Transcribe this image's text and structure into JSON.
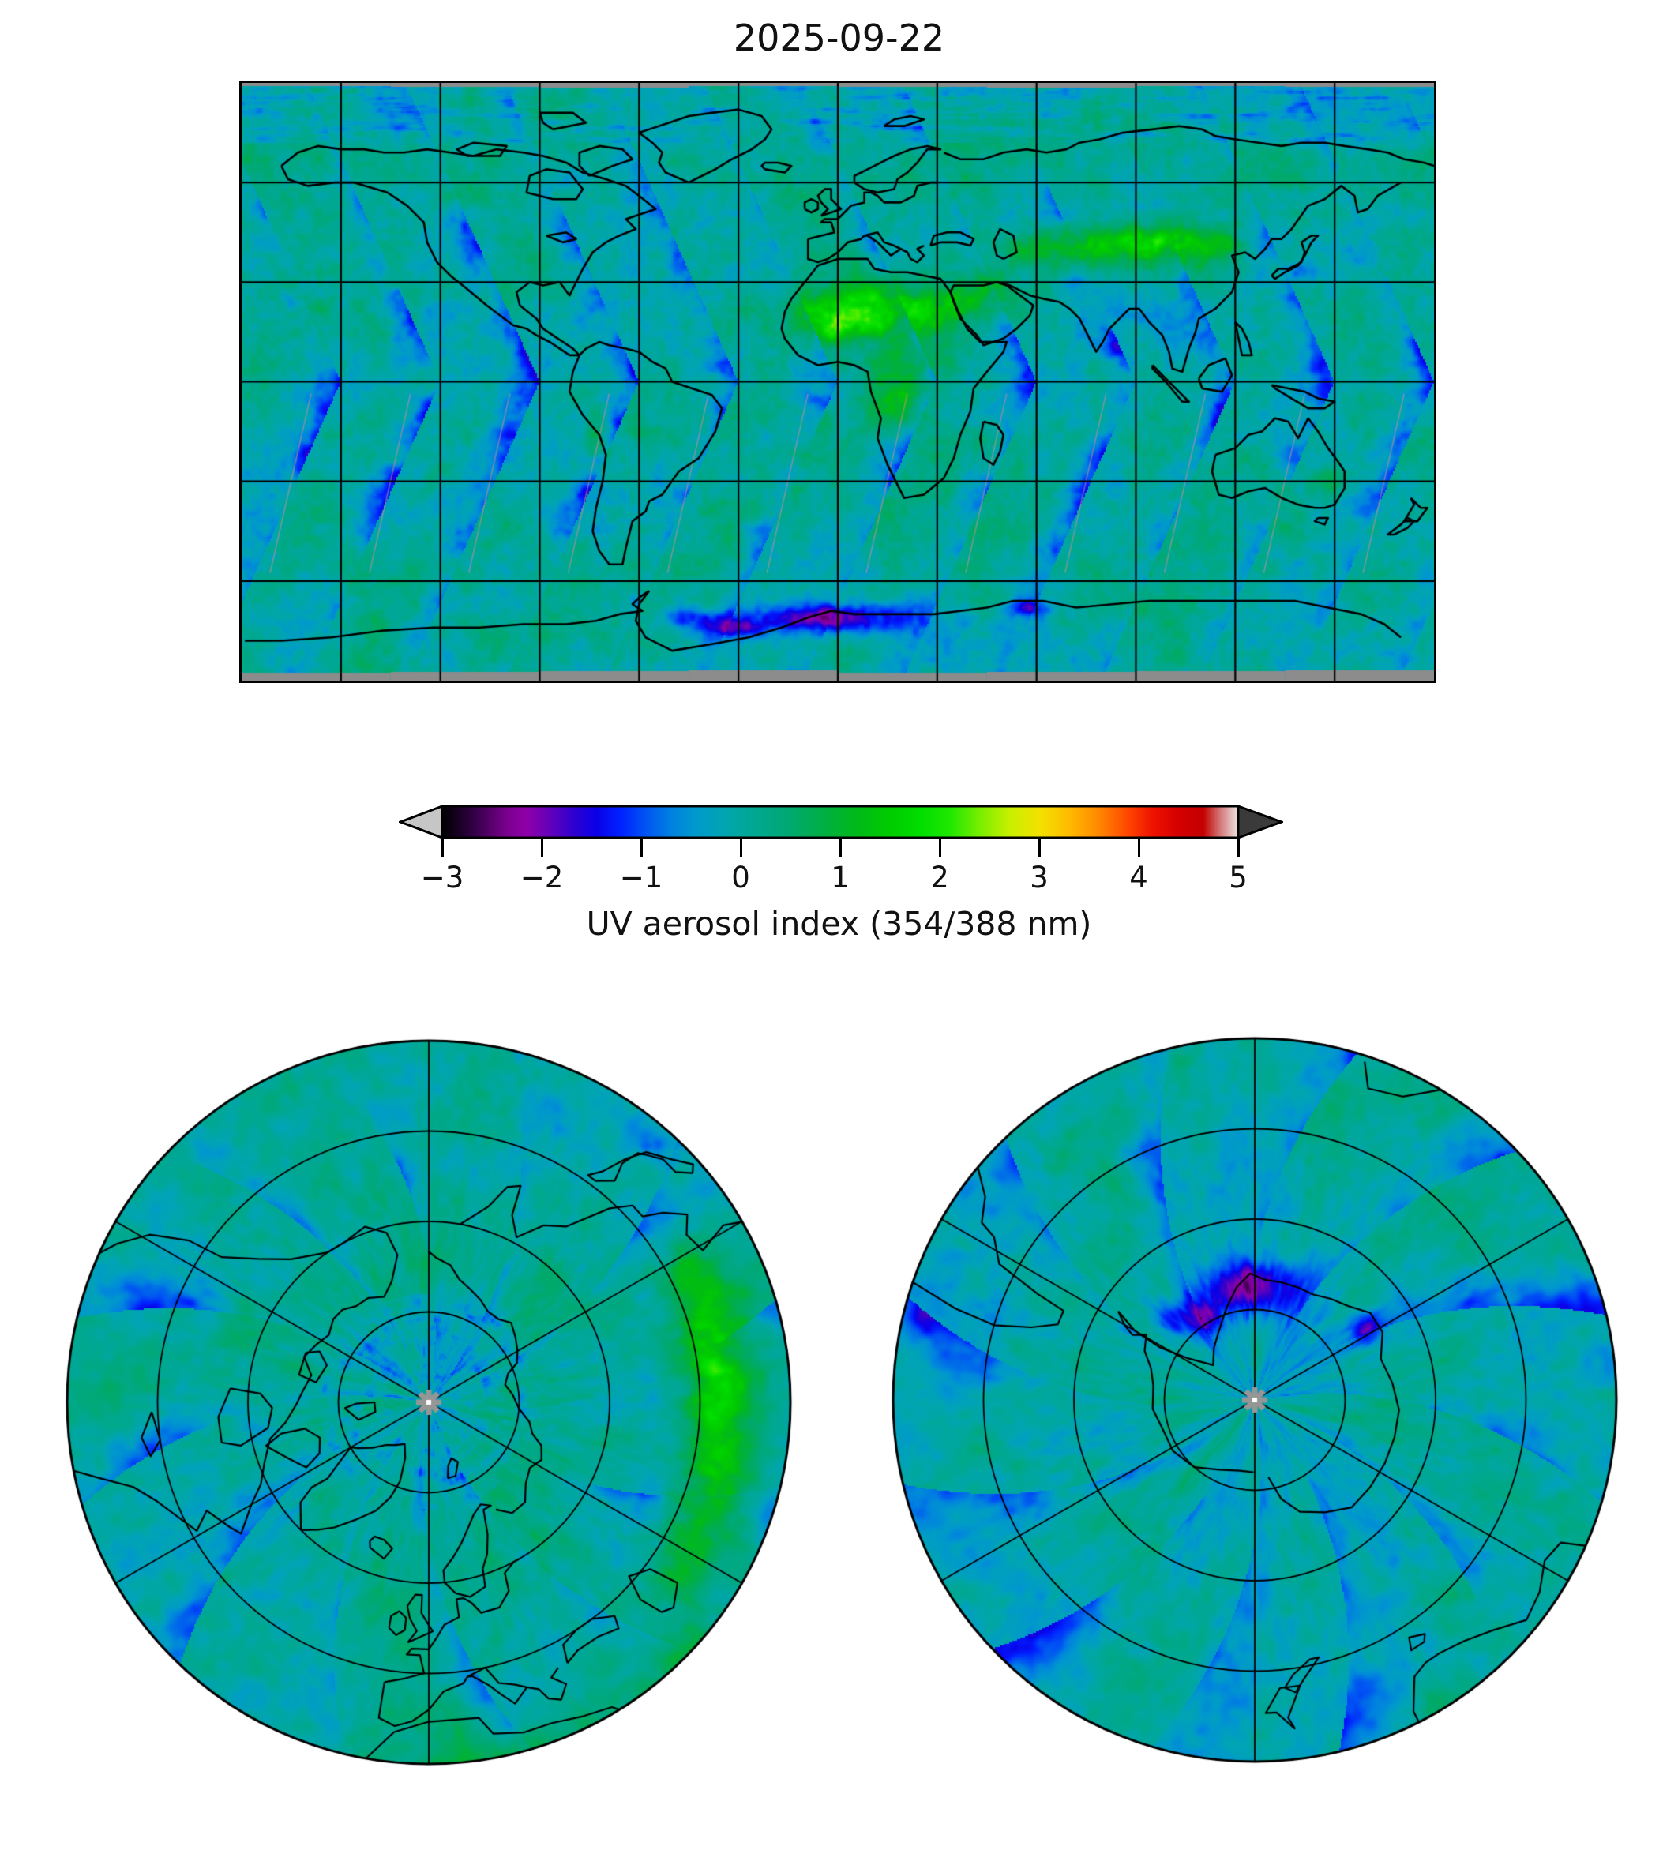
{
  "figure": {
    "title": "2025-09-22"
  },
  "colorbar": {
    "label": "UV aerosol index (354/388 nm)",
    "tick_labels": [
      "−3",
      "−2",
      "−1",
      "0",
      "1",
      "2",
      "3",
      "4",
      "5"
    ],
    "tick_values": [
      -3,
      -2,
      -1,
      0,
      1,
      2,
      3,
      4,
      5
    ],
    "min": -3,
    "max": 5,
    "extend": "both",
    "under_arrow_color": "#c6c6c6",
    "over_arrow_color": "#3a3a3a",
    "colormap_stops": [
      [
        -3.0,
        "#000000"
      ],
      [
        -2.7,
        "#2e0040"
      ],
      [
        -2.35,
        "#7a008f"
      ],
      [
        -2.15,
        "#8f00a8"
      ],
      [
        -1.95,
        "#6a00b8"
      ],
      [
        -1.7,
        "#3300cc"
      ],
      [
        -1.45,
        "#0a00e8"
      ],
      [
        -1.2,
        "#0022ff"
      ],
      [
        -0.95,
        "#0055f2"
      ],
      [
        -0.7,
        "#0080e0"
      ],
      [
        -0.45,
        "#0099cc"
      ],
      [
        -0.2,
        "#00a4b4"
      ],
      [
        0.0,
        "#00a79e"
      ],
      [
        0.3,
        "#00a884"
      ],
      [
        0.6,
        "#00aa62"
      ],
      [
        0.9,
        "#00b03a"
      ],
      [
        1.2,
        "#00bb16"
      ],
      [
        1.5,
        "#00cc00"
      ],
      [
        1.8,
        "#00dd00"
      ],
      [
        2.1,
        "#1ee800"
      ],
      [
        2.4,
        "#77ee00"
      ],
      [
        2.7,
        "#c8ef00"
      ],
      [
        3.0,
        "#f2e200"
      ],
      [
        3.3,
        "#ffbb00"
      ],
      [
        3.6,
        "#ff8800"
      ],
      [
        3.9,
        "#ff4400"
      ],
      [
        4.15,
        "#ee1100"
      ],
      [
        4.4,
        "#d40000"
      ],
      [
        4.65,
        "#c40000"
      ],
      [
        4.82,
        "#d47878"
      ],
      [
        5.0,
        "#efe2e2"
      ]
    ]
  },
  "chart_data": {
    "type": "heatmap",
    "title": "2025-09-22",
    "quantity": "UV aerosol index (354/388 nm)",
    "colorbar": {
      "label": "UV aerosol index (354/388 nm)",
      "ticks": [
        -3,
        -2,
        -1,
        0,
        1,
        2,
        3,
        4,
        5
      ],
      "range": [
        -3,
        5
      ],
      "extend": "both"
    },
    "panels": [
      {
        "name": "global-map",
        "projection": "equirectangular",
        "lon_range": [
          -180,
          180
        ],
        "lat_range": [
          -90,
          90
        ],
        "gridline_spacing_deg": 30,
        "coastlines": true,
        "no_data_color": "gray strips along top and bottom (polar night)",
        "background_value": 0
      },
      {
        "name": "north-polar",
        "projection": "north-polar-stereographic",
        "boundary_lat": 30,
        "latitude_rings": [
          75,
          60,
          45
        ],
        "meridian_spacing_deg": 60,
        "pole_marker": "gray asterisk (missing data at pole)"
      },
      {
        "name": "south-polar",
        "projection": "south-polar-stereographic",
        "boundary_lat": -30,
        "latitude_rings": [
          -75,
          -60,
          -45
        ],
        "meridian_spacing_deg": 60,
        "pole_marker": "gray asterisk (missing data at pole)"
      }
    ],
    "features": [
      {
        "region": "Sahara / Sahel dust plume",
        "approx_value": "1.5 to 3"
      },
      {
        "region": "Arabian Peninsula and Middle East",
        "approx_value": "1 to 2.5"
      },
      {
        "region": "Central Asia / NW China belt (~40N)",
        "approx_value": "1.5 to 3 with yellow hotspots"
      },
      {
        "region": "Equatorial and southern Africa smoke",
        "approx_value": "1 to 2"
      },
      {
        "region": "Andes / western South America streaks",
        "approx_value": "1 to 2.5"
      },
      {
        "region": "Orbital swath streaks over oceans (global)",
        "approx_value": "-1.5 to -0.5 (blue wedges)"
      },
      {
        "region": "Antarctic coast and interior patches",
        "approx_value": "-2.5 to -2 (magenta)"
      },
      {
        "region": "Typical ocean background",
        "approx_value": "0 (teal)"
      }
    ]
  }
}
